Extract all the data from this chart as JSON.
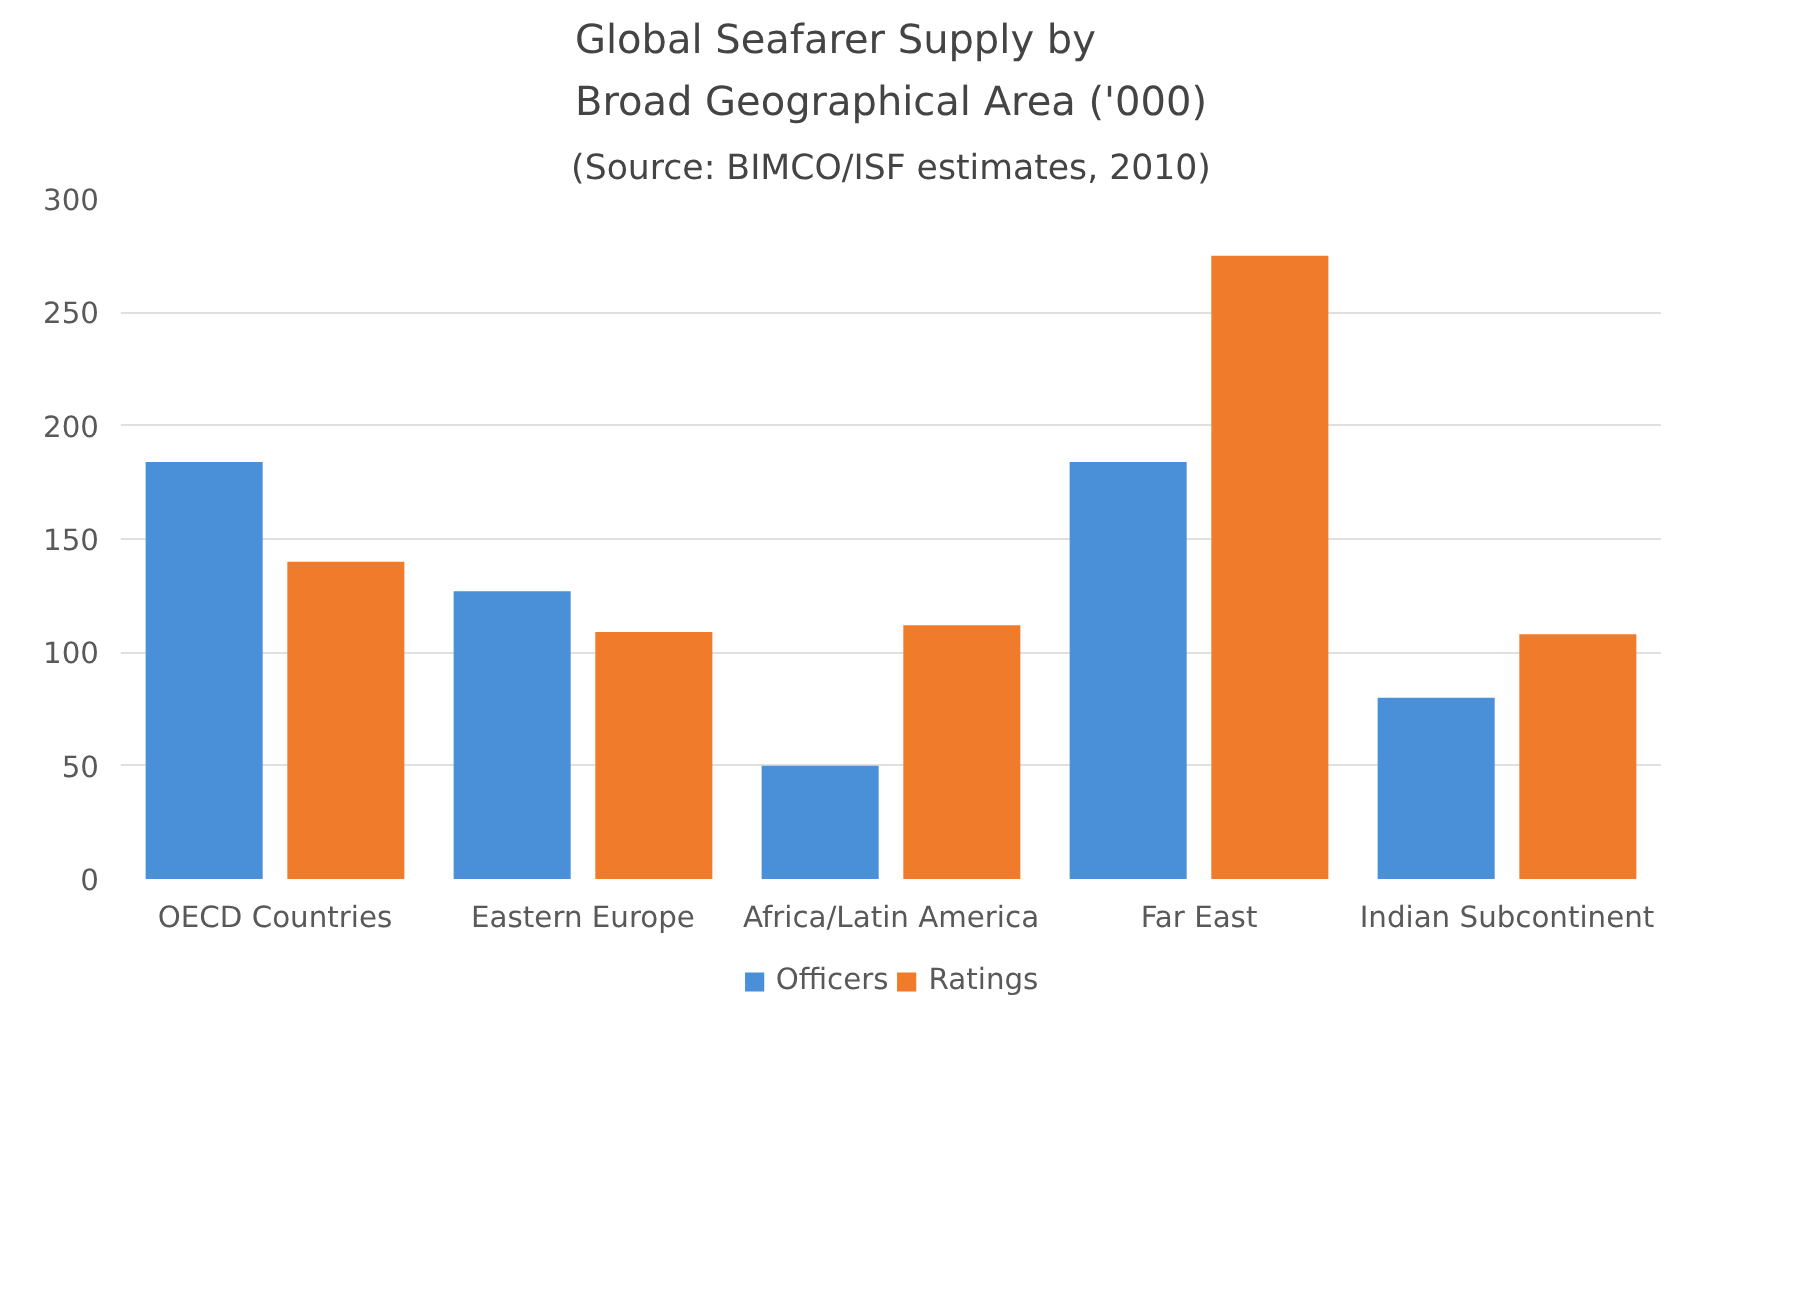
{
  "chart_data": {
    "type": "bar",
    "title": "Global Seafarer Supply by\nBroad Geographical Area ('000)",
    "subtitle": "(Source: BIMCO/ISF estimates, 2010)",
    "categories": [
      "OECD Countries",
      "Eastern Europe",
      "Africa/Latin America",
      "Far East",
      "Indian Subcontinent"
    ],
    "series": [
      {
        "name": "Officers",
        "color": "#4a90d9",
        "values": [
          184,
          127,
          50,
          184,
          80
        ]
      },
      {
        "name": "Ratings",
        "color": "#f07b2a",
        "values": [
          140,
          109,
          112,
          275,
          108
        ]
      }
    ],
    "ylim": [
      0,
      300
    ],
    "yticks": [
      0,
      50,
      100,
      150,
      200,
      250,
      300
    ],
    "grid": "y",
    "legend": "bottom"
  }
}
